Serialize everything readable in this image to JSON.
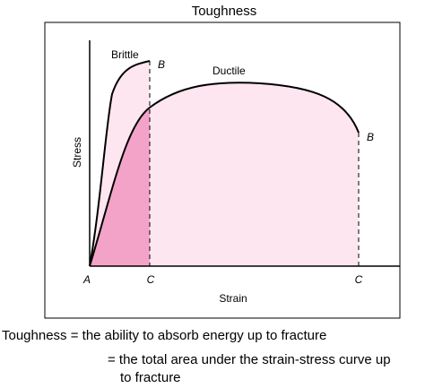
{
  "title": "Toughness",
  "diagram": {
    "brittle_label": "Brittle",
    "brittle_end": "B",
    "ductile_label": "Ductile",
    "ductile_end": "B",
    "y_axis_label": "Stress",
    "x_axis_label": "Strain",
    "origin": "A",
    "brittle_fracture": "C",
    "ductile_fracture": "C"
  },
  "definition": {
    "line1": "Toughness = the ability to absorb energy up to fracture",
    "line2": "= the total area under the strain-stress curve up",
    "line3": "to fracture"
  }
}
